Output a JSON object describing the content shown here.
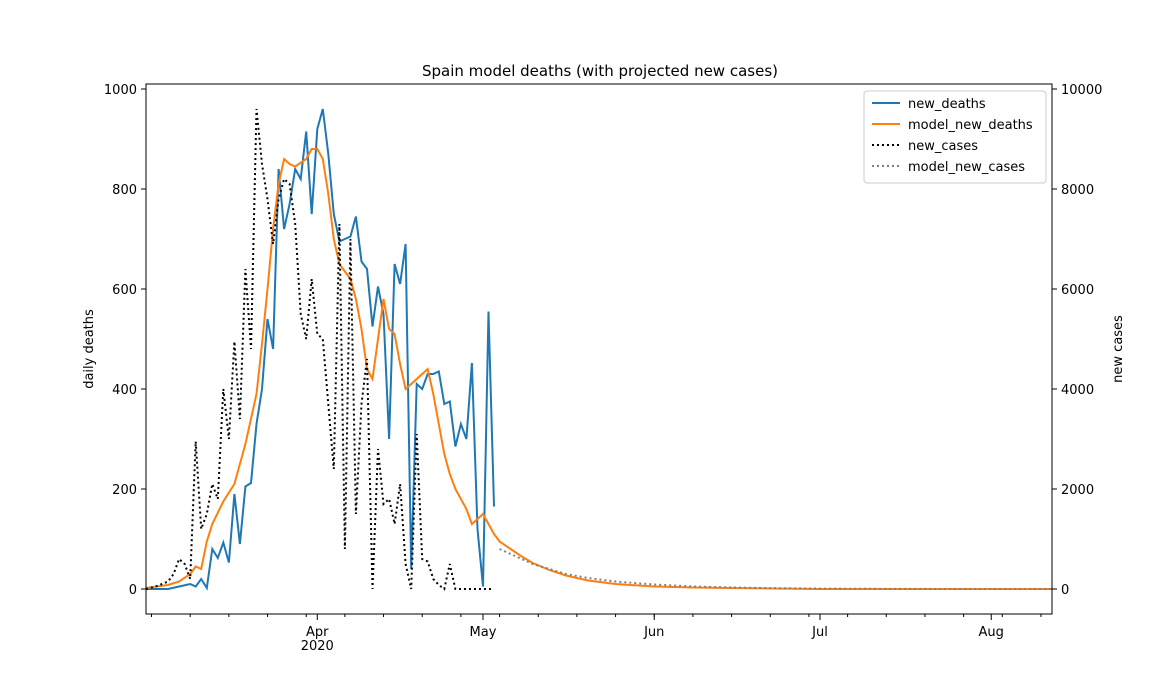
{
  "chart_data": {
    "type": "line",
    "title": "Spain model deaths (with projected new cases)",
    "ylabel": "daily deaths",
    "y2label": "new cases",
    "ylim": [
      -50,
      1010
    ],
    "y2lim": [
      -500,
      10100
    ],
    "xlim": [
      "2020-03-01",
      "2020-08-12"
    ],
    "yticks": [
      0,
      200,
      400,
      600,
      800,
      1000
    ],
    "y2ticks": [
      0,
      2000,
      4000,
      6000,
      8000,
      10000
    ],
    "xticks": [
      {
        "date": "2020-04-01",
        "label": "Apr",
        "sublabel": "2020"
      },
      {
        "date": "2020-05-01",
        "label": "May"
      },
      {
        "date": "2020-06-01",
        "label": "Jun"
      },
      {
        "date": "2020-07-01",
        "label": "Jul"
      },
      {
        "date": "2020-08-01",
        "label": "Aug"
      }
    ],
    "legend_position": "top-right",
    "series": [
      {
        "name": "new_deaths",
        "axis": "left",
        "color": "#1f77b4",
        "style": "solid",
        "x": [
          "2020-03-01",
          "2020-03-03",
          "2020-03-05",
          "2020-03-07",
          "2020-03-09",
          "2020-03-10",
          "2020-03-11",
          "2020-03-12",
          "2020-03-13",
          "2020-03-14",
          "2020-03-15",
          "2020-03-16",
          "2020-03-17",
          "2020-03-18",
          "2020-03-19",
          "2020-03-20",
          "2020-03-21",
          "2020-03-22",
          "2020-03-23",
          "2020-03-24",
          "2020-03-25",
          "2020-03-26",
          "2020-03-27",
          "2020-03-28",
          "2020-03-29",
          "2020-03-30",
          "2020-03-31",
          "2020-04-01",
          "2020-04-02",
          "2020-04-03",
          "2020-04-04",
          "2020-04-05",
          "2020-04-06",
          "2020-04-07",
          "2020-04-08",
          "2020-04-09",
          "2020-04-10",
          "2020-04-11",
          "2020-04-12",
          "2020-04-13",
          "2020-04-14",
          "2020-04-15",
          "2020-04-16",
          "2020-04-17",
          "2020-04-18",
          "2020-04-19",
          "2020-04-20",
          "2020-04-21",
          "2020-04-22",
          "2020-04-23",
          "2020-04-24",
          "2020-04-25",
          "2020-04-26",
          "2020-04-27",
          "2020-04-28",
          "2020-04-29",
          "2020-04-30",
          "2020-05-01",
          "2020-05-02",
          "2020-05-03"
        ],
        "y": [
          0,
          0,
          0,
          5,
          10,
          5,
          20,
          2,
          80,
          62,
          93,
          53,
          190,
          90,
          205,
          212,
          330,
          400,
          540,
          480,
          840,
          720,
          770,
          840,
          820,
          915,
          750,
          920,
          960,
          870,
          750,
          695,
          700,
          705,
          745,
          655,
          640,
          525,
          605,
          550,
          300,
          650,
          610,
          690,
          40,
          410,
          400,
          430,
          430,
          435,
          370,
          375,
          285,
          330,
          300,
          452,
          120,
          5,
          555,
          165
        ]
      },
      {
        "name": "model_new_deaths",
        "axis": "left",
        "color": "#ff7f0e",
        "style": "solid",
        "x": [
          "2020-03-01",
          "2020-03-03",
          "2020-03-05",
          "2020-03-07",
          "2020-03-09",
          "2020-03-10",
          "2020-03-11",
          "2020-03-12",
          "2020-03-13",
          "2020-03-15",
          "2020-03-17",
          "2020-03-19",
          "2020-03-21",
          "2020-03-22",
          "2020-03-23",
          "2020-03-24",
          "2020-03-25",
          "2020-03-26",
          "2020-03-27",
          "2020-03-28",
          "2020-03-30",
          "2020-03-31",
          "2020-04-01",
          "2020-04-02",
          "2020-04-03",
          "2020-04-04",
          "2020-04-05",
          "2020-04-06",
          "2020-04-07",
          "2020-04-08",
          "2020-04-09",
          "2020-04-10",
          "2020-04-11",
          "2020-04-12",
          "2020-04-13",
          "2020-04-14",
          "2020-04-15",
          "2020-04-16",
          "2020-04-17",
          "2020-04-18",
          "2020-04-19",
          "2020-04-20",
          "2020-04-21",
          "2020-04-22",
          "2020-04-23",
          "2020-04-24",
          "2020-04-25",
          "2020-04-26",
          "2020-04-27",
          "2020-04-28",
          "2020-04-29",
          "2020-04-30",
          "2020-05-01",
          "2020-05-02",
          "2020-05-03",
          "2020-05-04",
          "2020-05-06",
          "2020-05-08",
          "2020-05-10",
          "2020-05-13",
          "2020-05-16",
          "2020-05-20",
          "2020-05-25",
          "2020-06-01",
          "2020-06-08",
          "2020-06-15",
          "2020-06-22",
          "2020-07-01",
          "2020-07-15",
          "2020-08-01",
          "2020-08-12"
        ],
        "y": [
          2,
          5,
          8,
          15,
          30,
          45,
          40,
          95,
          130,
          175,
          210,
          290,
          390,
          490,
          600,
          720,
          810,
          860,
          850,
          845,
          860,
          880,
          880,
          860,
          790,
          700,
          650,
          635,
          620,
          580,
          520,
          440,
          420,
          500,
          580,
          520,
          510,
          450,
          400,
          410,
          420,
          430,
          440,
          390,
          330,
          270,
          230,
          200,
          180,
          160,
          130,
          140,
          150,
          130,
          110,
          95,
          80,
          65,
          52,
          38,
          27,
          17,
          10,
          5,
          3,
          2,
          1,
          0,
          0,
          0,
          0
        ]
      },
      {
        "name": "new_cases",
        "axis": "right",
        "color": "#000000",
        "style": "dotted",
        "x": [
          "2020-03-01",
          "2020-03-03",
          "2020-03-05",
          "2020-03-06",
          "2020-03-07",
          "2020-03-08",
          "2020-03-09",
          "2020-03-10",
          "2020-03-11",
          "2020-03-12",
          "2020-03-13",
          "2020-03-14",
          "2020-03-15",
          "2020-03-16",
          "2020-03-17",
          "2020-03-18",
          "2020-03-19",
          "2020-03-20",
          "2020-03-21",
          "2020-03-22",
          "2020-03-23",
          "2020-03-24",
          "2020-03-25",
          "2020-03-26",
          "2020-03-27",
          "2020-03-28",
          "2020-03-29",
          "2020-03-30",
          "2020-03-31",
          "2020-04-01",
          "2020-04-02",
          "2020-04-03",
          "2020-04-04",
          "2020-04-05",
          "2020-04-06",
          "2020-04-07",
          "2020-04-08",
          "2020-04-09",
          "2020-04-10",
          "2020-04-11",
          "2020-04-12",
          "2020-04-13",
          "2020-04-14",
          "2020-04-15",
          "2020-04-16",
          "2020-04-17",
          "2020-04-18",
          "2020-04-19",
          "2020-04-20",
          "2020-04-21",
          "2020-04-22",
          "2020-04-23",
          "2020-04-24",
          "2020-04-25",
          "2020-04-26",
          "2020-04-27",
          "2020-04-28",
          "2020-04-29",
          "2020-04-30",
          "2020-05-01",
          "2020-05-02",
          "2020-05-03"
        ],
        "y": [
          0,
          60,
          150,
          300,
          600,
          500,
          200,
          2950,
          1200,
          1500,
          2100,
          1800,
          4000,
          3000,
          4950,
          3400,
          6400,
          4800,
          9600,
          8500,
          7800,
          6900,
          7800,
          8200,
          8100,
          7300,
          5500,
          5000,
          6200,
          5100,
          5000,
          3700,
          2400,
          7300,
          800,
          7000,
          1500,
          3700,
          4600,
          0,
          2800,
          1700,
          1800,
          1300,
          2100,
          500,
          0,
          3100,
          600,
          550,
          200,
          80,
          0,
          500,
          0,
          0,
          0,
          0,
          0,
          0,
          0,
          0
        ]
      },
      {
        "name": "model_new_cases",
        "axis": "right",
        "color": "#808080",
        "style": "dotted",
        "x": [
          "2020-05-04",
          "2020-05-06",
          "2020-05-08",
          "2020-05-10",
          "2020-05-13",
          "2020-05-16",
          "2020-05-20",
          "2020-05-25",
          "2020-06-01",
          "2020-06-08",
          "2020-06-15",
          "2020-06-22",
          "2020-07-01",
          "2020-07-15",
          "2020-08-01",
          "2020-08-12"
        ],
        "y": [
          800,
          700,
          600,
          500,
          400,
          300,
          220,
          150,
          90,
          50,
          30,
          18,
          8,
          3,
          1,
          0
        ]
      }
    ]
  }
}
